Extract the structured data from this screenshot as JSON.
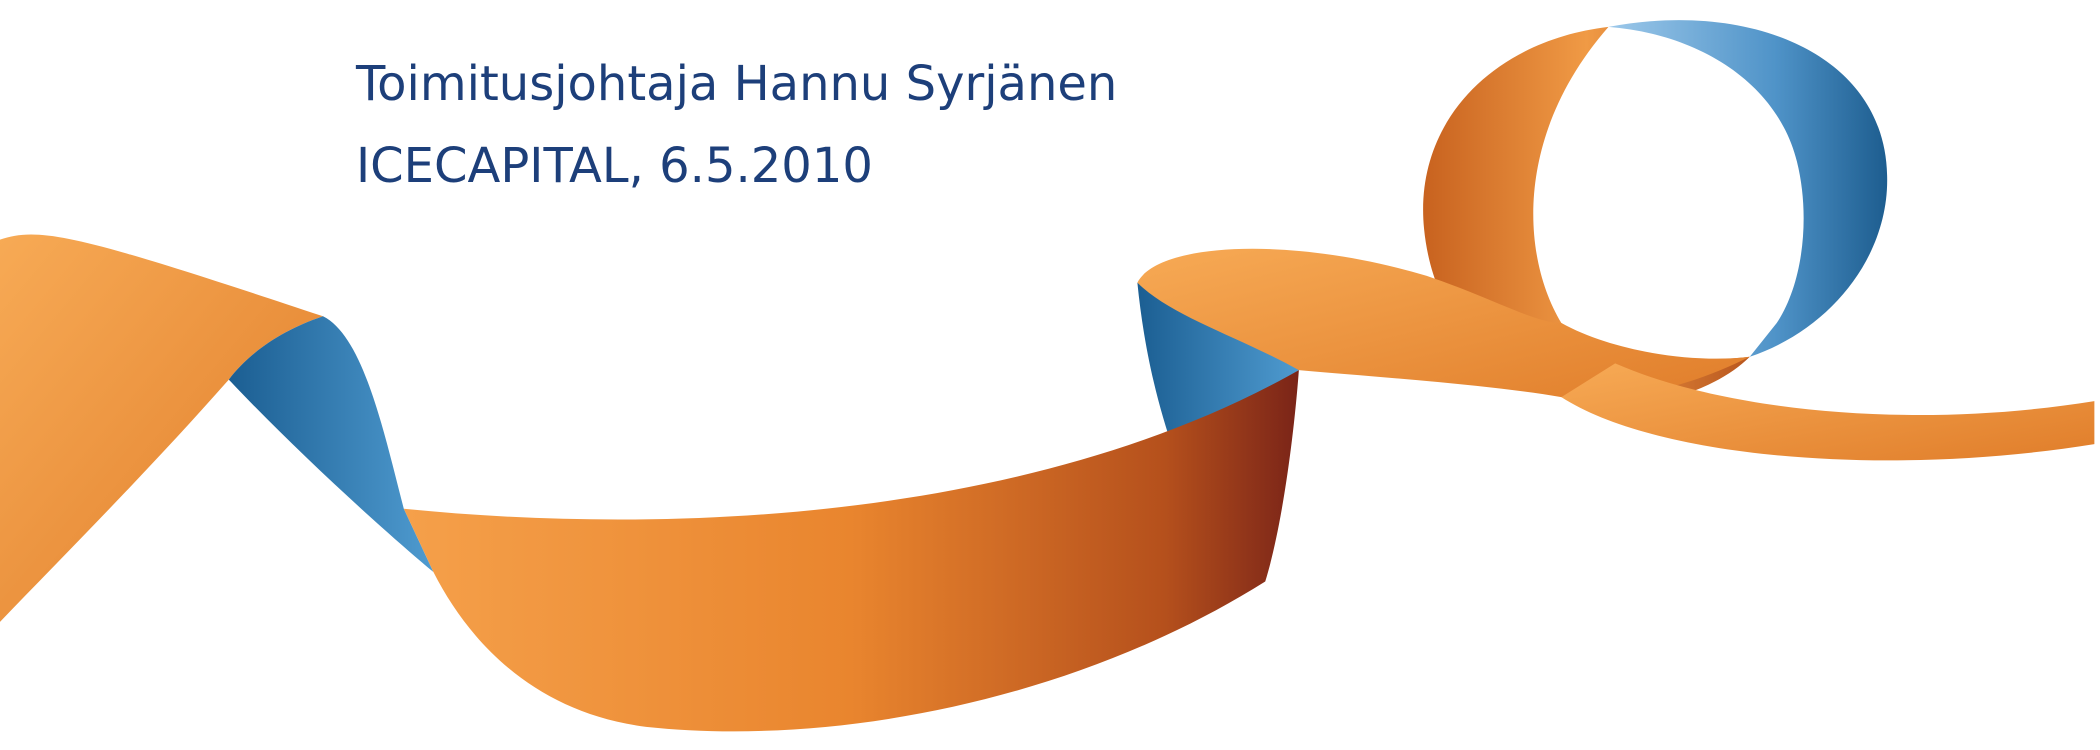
{
  "slide": {
    "lines": [
      "Toimitusjohtaja Hannu Syrjänen",
      "ICECAPITAL, 6.5.2010"
    ]
  }
}
